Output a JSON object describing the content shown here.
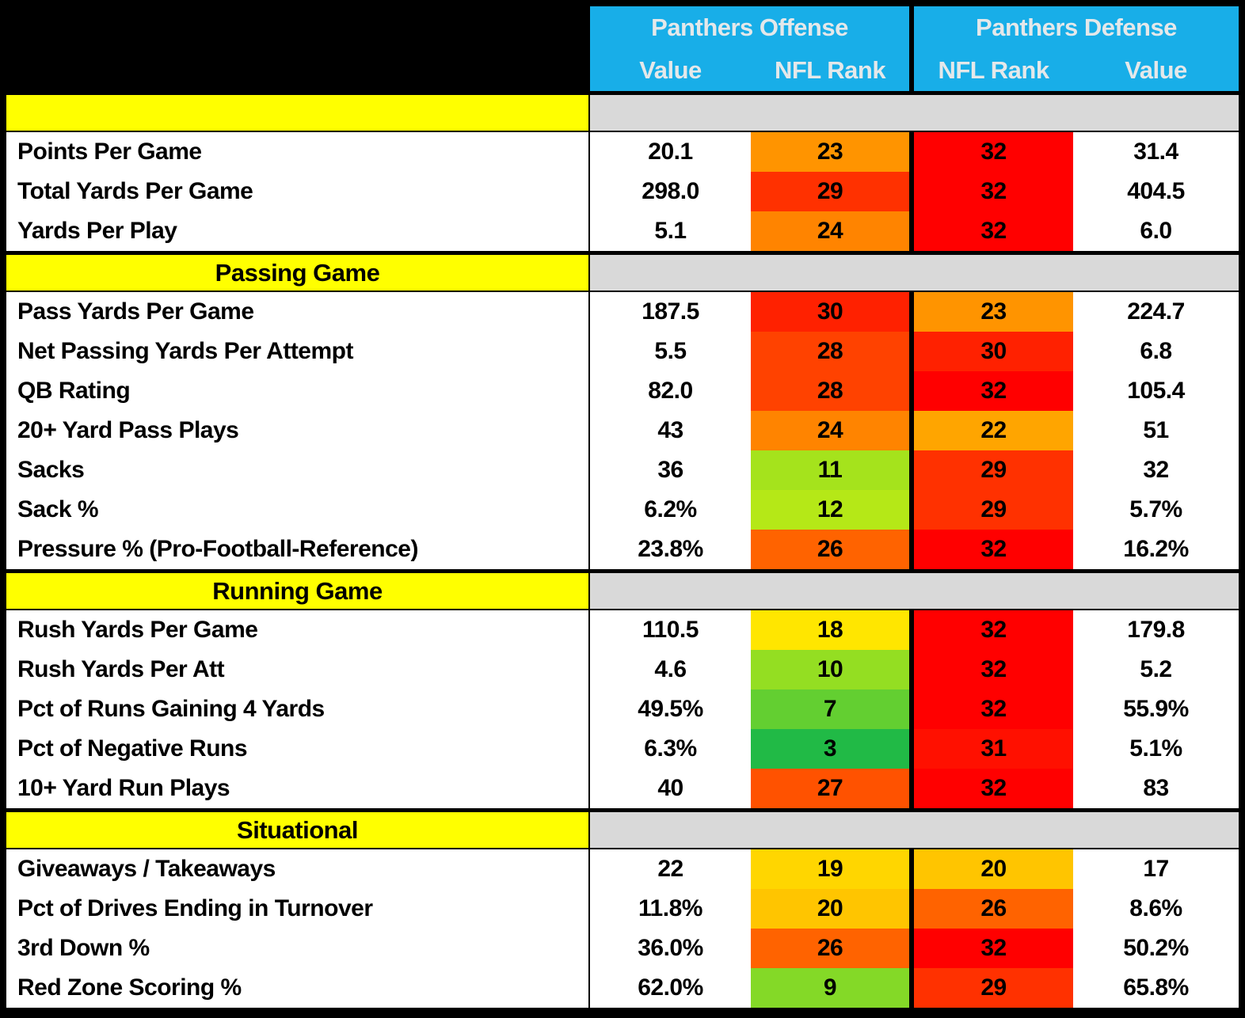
{
  "chart_data": {
    "type": "table",
    "corner_label": "",
    "column_groups": [
      {
        "label": "Panthers Offense",
        "columns": [
          "Value",
          "NFL Rank"
        ]
      },
      {
        "label": "Panthers Defense",
        "columns": [
          "NFL Rank",
          "Value"
        ]
      }
    ],
    "rank_scale": {
      "min_rank": 1,
      "mid_rank": 16.5,
      "max_rank": 32,
      "min_color": "#00B050",
      "mid_color": "#FFFF00",
      "max_color": "#FF0000"
    },
    "colors": {
      "header_blue": "#18AEE8",
      "header_text": "#E4E8EA",
      "section_yellow": "#FFFF00",
      "section_gray": "#D9D9D9",
      "border_black": "#000000"
    },
    "sections": [
      {
        "title": "",
        "rows": [
          {
            "stat": "Points Per Game",
            "offense_value": "20.1",
            "offense_rank": 23,
            "defense_rank": 32,
            "defense_value": "31.4"
          },
          {
            "stat": "Total Yards Per Game",
            "offense_value": "298.0",
            "offense_rank": 29,
            "defense_rank": 32,
            "defense_value": "404.5"
          },
          {
            "stat": "Yards Per Play",
            "offense_value": "5.1",
            "offense_rank": 24,
            "defense_rank": 32,
            "defense_value": "6.0"
          }
        ]
      },
      {
        "title": "Passing Game",
        "rows": [
          {
            "stat": "Pass Yards Per Game",
            "offense_value": "187.5",
            "offense_rank": 30,
            "defense_rank": 23,
            "defense_value": "224.7"
          },
          {
            "stat": "Net Passing Yards Per Attempt",
            "offense_value": "5.5",
            "offense_rank": 28,
            "defense_rank": 30,
            "defense_value": "6.8"
          },
          {
            "stat": "QB Rating",
            "offense_value": "82.0",
            "offense_rank": 28,
            "defense_rank": 32,
            "defense_value": "105.4"
          },
          {
            "stat": "20+ Yard Pass Plays",
            "offense_value": "43",
            "offense_rank": 24,
            "defense_rank": 22,
            "defense_value": "51"
          },
          {
            "stat": "Sacks",
            "offense_value": "36",
            "offense_rank": 11,
            "defense_rank": 29,
            "defense_value": "32"
          },
          {
            "stat": "Sack %",
            "offense_value": "6.2%",
            "offense_rank": 12,
            "defense_rank": 29,
            "defense_value": "5.7%"
          },
          {
            "stat": "Pressure % (Pro-Football-Reference)",
            "offense_value": "23.8%",
            "offense_rank": 26,
            "defense_rank": 32,
            "defense_value": "16.2%"
          }
        ]
      },
      {
        "title": "Running Game",
        "rows": [
          {
            "stat": "Rush Yards Per Game",
            "offense_value": "110.5",
            "offense_rank": 18,
            "defense_rank": 32,
            "defense_value": "179.8"
          },
          {
            "stat": "Rush Yards Per Att",
            "offense_value": "4.6",
            "offense_rank": 10,
            "defense_rank": 32,
            "defense_value": "5.2"
          },
          {
            "stat": "Pct of Runs Gaining 4 Yards",
            "offense_value": "49.5%",
            "offense_rank": 7,
            "defense_rank": 32,
            "defense_value": "55.9%"
          },
          {
            "stat": "Pct of Negative Runs",
            "offense_value": "6.3%",
            "offense_rank": 3,
            "defense_rank": 31,
            "defense_value": "5.1%"
          },
          {
            "stat": "10+ Yard Run Plays",
            "offense_value": "40",
            "offense_rank": 27,
            "defense_rank": 32,
            "defense_value": "83"
          }
        ]
      },
      {
        "title": "Situational",
        "rows": [
          {
            "stat": "Giveaways / Takeaways",
            "offense_value": "22",
            "offense_rank": 19,
            "defense_rank": 20,
            "defense_value": "17"
          },
          {
            "stat": "Pct of Drives Ending in Turnover",
            "offense_value": "11.8%",
            "offense_rank": 20,
            "defense_rank": 26,
            "defense_value": "8.6%"
          },
          {
            "stat": "3rd Down %",
            "offense_value": "36.0%",
            "offense_rank": 26,
            "defense_rank": 32,
            "defense_value": "50.2%"
          },
          {
            "stat": "Red Zone Scoring %",
            "offense_value": "62.0%",
            "offense_rank": 9,
            "defense_rank": 29,
            "defense_value": "65.8%"
          }
        ]
      }
    ]
  }
}
